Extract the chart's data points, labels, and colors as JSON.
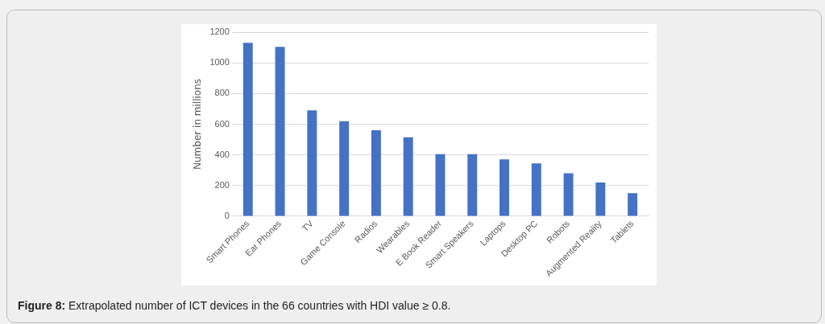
{
  "chart_data": {
    "type": "bar",
    "ylabel": "Number in millions",
    "categories": [
      "Smart Phones",
      "Ear Phones",
      "TV",
      "Game Console",
      "Radios",
      "Wearables",
      "E Book Reader",
      "Smart Speakers",
      "Laptops",
      "Desktop PC",
      "Robots",
      "Augmented Reality",
      "Tablets"
    ],
    "values": [
      1130,
      1105,
      690,
      620,
      560,
      515,
      405,
      405,
      370,
      345,
      280,
      220,
      150
    ],
    "color": "#4472c4",
    "ylim": [
      0,
      1200
    ],
    "yticks": [
      0,
      200,
      400,
      600,
      800,
      1000,
      1200
    ],
    "grid": "y",
    "annotations": [
      "Figure 8: Extrapolated number of ICT devices in the 66 countries with HDI value ≥ 0.8."
    ]
  }
}
